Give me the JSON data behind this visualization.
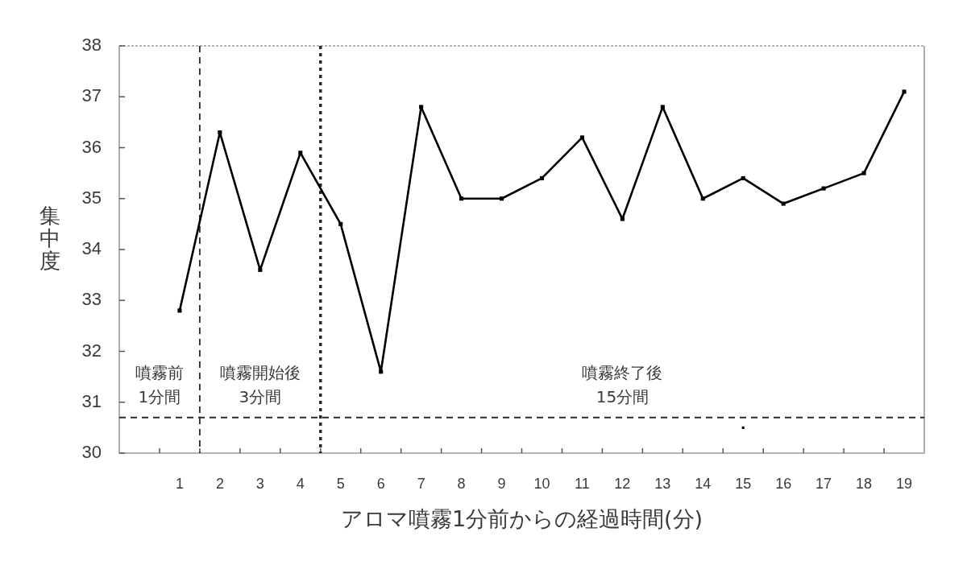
{
  "chart_data": {
    "type": "line",
    "xlabel": "アロマ噴霧1分前からの経過時間(分)",
    "ylabel": "集中度",
    "x": [
      1,
      2,
      3,
      4,
      5,
      6,
      7,
      8,
      9,
      10,
      11,
      12,
      13,
      14,
      15,
      16,
      17,
      18,
      19
    ],
    "series": [
      {
        "color": "#000000",
        "values": [
          32.8,
          36.3,
          33.6,
          35.9,
          34.5,
          31.6,
          36.8,
          35.0,
          35.0,
          35.4,
          36.2,
          34.6,
          36.8,
          35.0,
          35.4,
          34.9,
          35.2,
          35.5,
          37.1
        ]
      },
      {
        "type": "scatter",
        "color": "#000000",
        "x": [
          15
        ],
        "values": [
          30.5
        ]
      }
    ],
    "xlim": [
      -0.5,
      19.5
    ],
    "xticks": [
      {
        "value": 0.5,
        "label": null
      },
      1,
      {
        "value": 1.5,
        "label": null
      },
      2,
      {
        "value": 2.5,
        "label": null
      },
      3,
      {
        "value": 3.5,
        "label": null
      },
      4,
      {
        "value": 4.5,
        "label": null
      },
      5,
      {
        "value": 5.5,
        "label": null
      },
      6,
      {
        "value": 6.5,
        "label": null
      },
      7,
      {
        "value": 7.5,
        "label": null
      },
      8,
      {
        "value": 8.5,
        "label": null
      },
      9,
      {
        "value": 9.5,
        "label": null
      },
      10,
      {
        "value": 10.5,
        "label": null
      },
      11,
      {
        "value": 11.5,
        "label": null
      },
      12,
      {
        "value": 12.5,
        "label": null
      },
      13,
      {
        "value": 13.5,
        "label": null
      },
      14,
      {
        "value": 14.5,
        "label": null
      },
      15,
      {
        "value": 15.5,
        "label": null
      },
      16,
      {
        "value": 16.5,
        "label": null
      },
      17,
      {
        "value": 17.5,
        "label": null
      },
      18,
      {
        "value": 18.5,
        "label": null
      },
      19
    ],
    "ylim": [
      30,
      38
    ],
    "yticks": [
      30,
      31,
      32,
      33,
      34,
      35,
      36,
      37,
      38
    ],
    "grid": false,
    "marker": "square",
    "line_style": "solid",
    "ref_lines": [
      {
        "axis": "x",
        "value": 1.5,
        "line_style": "dashed"
      },
      {
        "axis": "x",
        "value": 4.5,
        "line_style": "dotted"
      },
      {
        "axis": "y",
        "value": 30.7,
        "line_style": "dashed"
      }
    ],
    "annotations": [
      "噴霧前\n1分間",
      "噴霧開始後\n3分間",
      "噴霧終了後\n15分間"
    ]
  }
}
